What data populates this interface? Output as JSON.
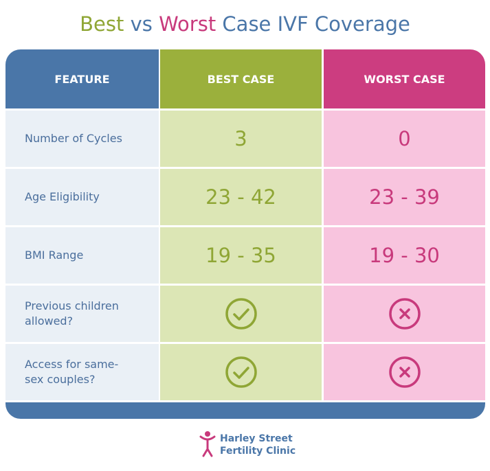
{
  "title": {
    "best": "Best",
    "vs": "vs",
    "worst": "Worst",
    "rest": "Case IVF Coverage"
  },
  "table": {
    "header": [
      "FEATURE",
      "BEST CASE",
      "WORST CASE"
    ],
    "rows": [
      {
        "feature": "Number of Cycles",
        "best": 3,
        "worst": 0
      },
      {
        "feature": "Age Eligibility",
        "best": "23 - 42",
        "worst": "23 - 39"
      },
      {
        "feature": "BMI Range",
        "best": "19 - 35",
        "worst": "19 - 30"
      },
      {
        "feature": "Previous children allowed?"
      },
      {
        "feature": "Access for same-sex couples?"
      }
    ]
  },
  "logo": {
    "line1": "Harley Street",
    "line2": "Fertility Clinic"
  }
}
